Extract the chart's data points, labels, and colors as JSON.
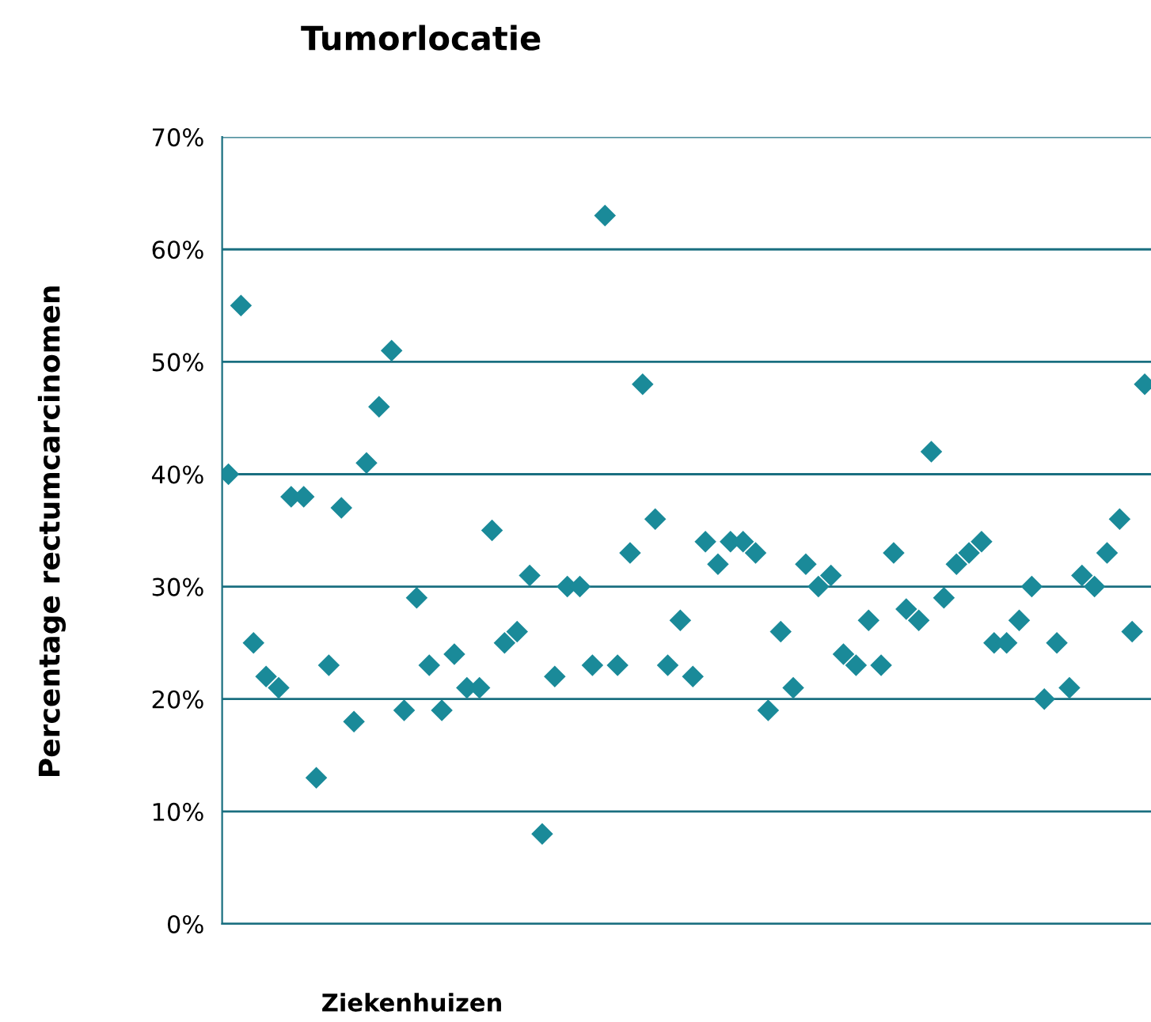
{
  "chart_data": {
    "type": "scatter",
    "title": "Tumorlocatie",
    "xlabel": "Ziekenhuizen",
    "ylabel": "Percentage rectumcarcinomen",
    "categories": [
      null,
      null,
      null,
      null,
      null,
      null,
      null,
      null,
      null,
      null,
      null,
      null,
      null,
      null,
      null,
      null,
      null,
      null,
      null,
      null,
      null,
      null,
      null,
      null,
      null,
      null,
      null,
      null,
      null,
      null,
      null,
      null,
      null,
      null,
      null,
      null,
      null,
      null,
      null,
      null,
      null,
      null,
      null,
      null,
      null,
      null,
      null,
      null,
      null,
      null,
      null,
      null,
      null,
      null,
      null,
      null,
      null,
      null,
      null,
      null,
      null,
      null,
      null,
      null,
      null,
      null,
      null,
      null,
      null,
      null,
      null,
      null,
      null,
      null
    ],
    "series": [
      {
        "color": "#1a8a99",
        "values": [
          40,
          55,
          25,
          22,
          21,
          38,
          38,
          13,
          23,
          37,
          18,
          41,
          46,
          51,
          19,
          29,
          23,
          19,
          24,
          21,
          21,
          35,
          25,
          26,
          31,
          8,
          22,
          30,
          30,
          23,
          63,
          23,
          33,
          48,
          36,
          23,
          27,
          22,
          34,
          32,
          34,
          34,
          33,
          19,
          26,
          21,
          32,
          30,
          31,
          24,
          23,
          27,
          23,
          33,
          28,
          27,
          42,
          29,
          32,
          33,
          34,
          25,
          25,
          27,
          30,
          20,
          25,
          21,
          31,
          30,
          33,
          36,
          26,
          48
        ]
      }
    ],
    "ylim": [
      0,
      70
    ],
    "yticks": [
      {
        "value": 0,
        "label": "0%"
      },
      {
        "value": 10,
        "label": "10%"
      },
      {
        "value": 20,
        "label": "20%"
      },
      {
        "value": 30,
        "label": "30%"
      },
      {
        "value": 40,
        "label": "40%"
      },
      {
        "value": 50,
        "label": "50%"
      },
      {
        "value": 60,
        "label": "60%"
      },
      {
        "value": 70,
        "label": "70%"
      }
    ],
    "grid": "y",
    "marker": "diamond"
  }
}
